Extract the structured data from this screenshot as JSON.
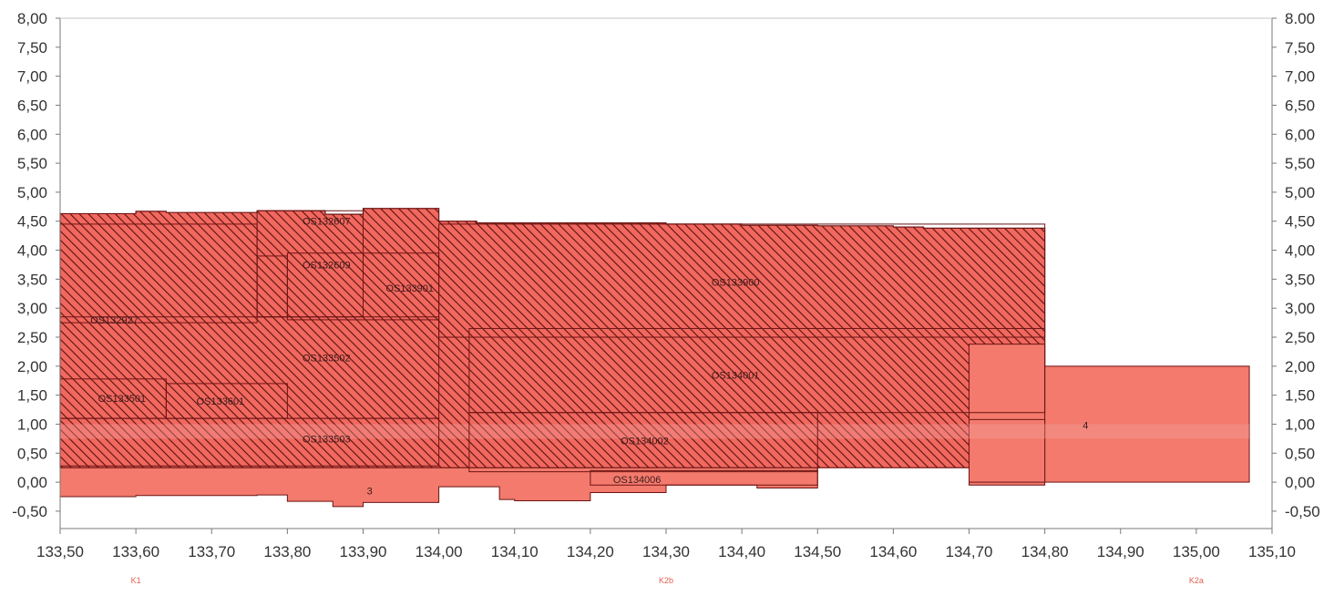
{
  "colors": {
    "fill": "#f1685f",
    "fill_light": "#f37a6c",
    "hatch": "#5a1010",
    "edge": "#6e1414",
    "axis": "#7a7a7a",
    "segment_text": "#e06050"
  },
  "chart_data": {
    "type": "area",
    "title": "",
    "xlabel": "",
    "ylabel": "",
    "xlim": [
      133.5,
      135.1
    ],
    "ylim": [
      -0.8,
      8.0
    ],
    "grid": false,
    "x_ticks": [
      "133,50",
      "133,60",
      "133,70",
      "133,80",
      "133,90",
      "134,00",
      "134,10",
      "134,20",
      "134,30",
      "134,40",
      "134,50",
      "134,60",
      "134,70",
      "134,80",
      "134,90",
      "135,00",
      "135,10"
    ],
    "y_ticks": [
      "8,00",
      "7,50",
      "7,00",
      "6,50",
      "6,00",
      "5,50",
      "5,00",
      "4,50",
      "4,00",
      "3,50",
      "3,00",
      "2,50",
      "2,00",
      "1,50",
      "1,00",
      "0,50",
      "0,00",
      "-0,50"
    ],
    "y_ticks_right": [
      "8.00",
      "7,50",
      "7,00",
      "6,50",
      "6,00",
      "5,50",
      "5,00",
      "4,50",
      "4,00",
      "3,50",
      "3,00",
      "2,50",
      "2,00",
      "1,50",
      "1,00",
      "0,50",
      "0,00",
      "-0,50"
    ],
    "segment_labels": [
      {
        "text": "K1",
        "x": 133.6
      },
      {
        "text": "K2b",
        "x": 134.3
      },
      {
        "text": "K2a",
        "x": 135.0
      }
    ],
    "zone_labels": [
      {
        "text": "OS132607",
        "x": 133.82,
        "y": 4.5
      },
      {
        "text": "OS132609",
        "x": 133.82,
        "y": 3.75
      },
      {
        "text": "OS133901",
        "x": 133.93,
        "y": 3.35
      },
      {
        "text": "OS133900",
        "x": 134.36,
        "y": 3.45
      },
      {
        "text": "OS132927",
        "x": 133.54,
        "y": 2.8
      },
      {
        "text": "OS133502",
        "x": 133.82,
        "y": 2.15
      },
      {
        "text": "OS134001",
        "x": 134.36,
        "y": 1.85
      },
      {
        "text": "OS133501",
        "x": 133.55,
        "y": 1.45
      },
      {
        "text": "OS133601",
        "x": 133.68,
        "y": 1.4
      },
      {
        "text": "OS133503",
        "x": 133.82,
        "y": 0.75
      },
      {
        "text": "OS134002",
        "x": 134.24,
        "y": 0.72
      },
      {
        "text": "OS134006",
        "x": 134.23,
        "y": 0.05
      },
      {
        "text": "3",
        "x": 133.905,
        "y": -0.15
      },
      {
        "text": "4",
        "x": 134.85,
        "y": 0.98
      }
    ],
    "series": [
      {
        "id": "top",
        "hatched": true,
        "steps": [
          [
            133.5,
            4.63
          ],
          [
            133.6,
            4.67
          ],
          [
            133.64,
            4.65
          ],
          [
            133.76,
            4.68
          ],
          [
            133.85,
            4.62
          ],
          [
            133.9,
            4.72
          ],
          [
            134.0,
            4.5
          ],
          [
            134.05,
            4.47
          ],
          [
            134.3,
            4.45
          ],
          [
            134.4,
            4.43
          ],
          [
            134.5,
            4.42
          ],
          [
            134.6,
            4.4
          ],
          [
            134.64,
            4.38
          ]
        ],
        "x_end": 134.8
      },
      {
        "id": "bottom",
        "hatched": false,
        "steps": [
          [
            133.5,
            -0.25
          ],
          [
            133.6,
            -0.23
          ],
          [
            133.76,
            -0.22
          ],
          [
            133.8,
            -0.33
          ],
          [
            133.86,
            -0.42
          ],
          [
            133.9,
            -0.35
          ],
          [
            134.0,
            -0.08
          ],
          [
            134.08,
            -0.3
          ],
          [
            134.1,
            -0.32
          ],
          [
            134.2,
            -0.18
          ],
          [
            134.3,
            -0.05
          ],
          [
            134.42,
            -0.1
          ],
          [
            134.5,
            0.45
          ],
          [
            134.6,
            0.6
          ],
          [
            134.64,
            0.78
          ]
        ],
        "x_end": 134.7
      }
    ],
    "zones": [
      {
        "x": [
          133.76,
          133.9
        ],
        "y": [
          2.85,
          4.68
        ],
        "hatched": true
      },
      {
        "x": [
          133.76,
          133.8
        ],
        "y": [
          2.85,
          3.9
        ],
        "hatched": true
      },
      {
        "x": [
          133.8,
          134.0
        ],
        "y": [
          2.8,
          3.95
        ],
        "hatched": true
      },
      {
        "x": [
          133.5,
          133.76
        ],
        "y": [
          2.75,
          4.45
        ],
        "hatched": true
      },
      {
        "x": [
          134.0,
          134.8
        ],
        "y": [
          2.5,
          4.45
        ],
        "hatched": true
      },
      {
        "x": [
          133.5,
          134.0
        ],
        "y": [
          1.1,
          2.85
        ],
        "hatched": true
      },
      {
        "x": [
          134.04,
          134.8
        ],
        "y": [
          1.2,
          2.65
        ],
        "hatched": true
      },
      {
        "x": [
          133.5,
          133.64
        ],
        "y": [
          1.1,
          1.78
        ],
        "hatched": true
      },
      {
        "x": [
          133.64,
          133.8
        ],
        "y": [
          1.1,
          1.7
        ],
        "hatched": true
      },
      {
        "x": [
          133.5,
          134.0
        ],
        "y": [
          0.28,
          1.1
        ],
        "hatched": true
      },
      {
        "x": [
          134.04,
          134.5
        ],
        "y": [
          0.18,
          1.2
        ],
        "hatched": true
      },
      {
        "x": [
          134.2,
          134.5
        ],
        "y": [
          -0.05,
          0.2
        ],
        "hatched": true
      },
      {
        "x": [
          134.7,
          134.8
        ],
        "y": [
          -0.05,
          2.38
        ],
        "hatched": false
      },
      {
        "x": [
          134.8,
          135.07
        ],
        "y": [
          0.0,
          2.0
        ],
        "hatched": false
      },
      {
        "x": [
          134.7,
          134.8
        ],
        "y": [
          0.0,
          1.08
        ],
        "hatched": false
      }
    ]
  }
}
